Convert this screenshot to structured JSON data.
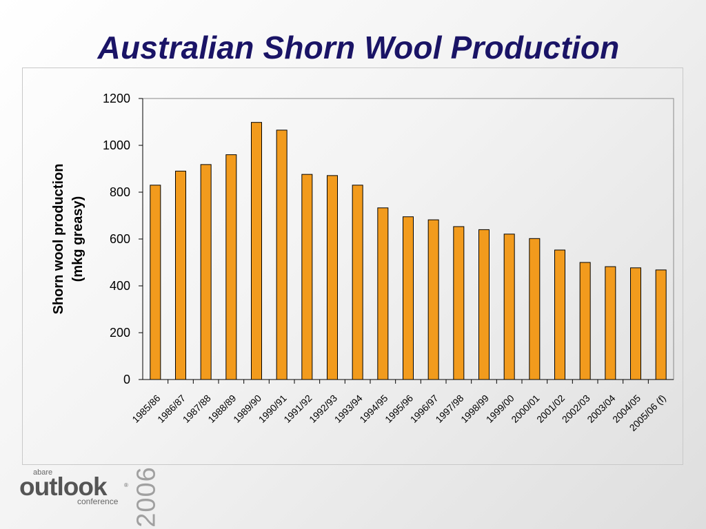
{
  "slide": {
    "title": "Australian Shorn Wool Production"
  },
  "logo": {
    "abare": "abare",
    "outlook": "outlook",
    "registered": "®",
    "conference": "conference",
    "year": "2006"
  },
  "colors": {
    "title": "#1a1466",
    "bar_fill": "#f29b1d",
    "bar_stroke": "#000000",
    "plot_border": "#888888"
  },
  "chart_data": {
    "type": "bar",
    "title": "",
    "xlabel": "",
    "ylabel_lines": [
      "Shorn wool production",
      "(mkg greasy)"
    ],
    "ylim": [
      0,
      1200
    ],
    "yticks": [
      0,
      200,
      400,
      600,
      800,
      1000,
      1200
    ],
    "grid": false,
    "legend": "none",
    "categories": [
      "1985/86",
      "1986/87",
      "1987/88",
      "1988/89",
      "1989/90",
      "1990/91",
      "1991/92",
      "1992/93",
      "1993/94",
      "1994/95",
      "1995/96",
      "1996/97",
      "1997/98",
      "1998/99",
      "1999/00",
      "2000/01",
      "2001/02",
      "2002/03",
      "2003/04",
      "2004/05",
      "2005/06 (f)"
    ],
    "values": [
      830,
      890,
      918,
      960,
      1098,
      1065,
      876,
      871,
      830,
      733,
      695,
      682,
      653,
      640,
      621,
      602,
      553,
      500,
      482,
      477,
      468
    ]
  }
}
